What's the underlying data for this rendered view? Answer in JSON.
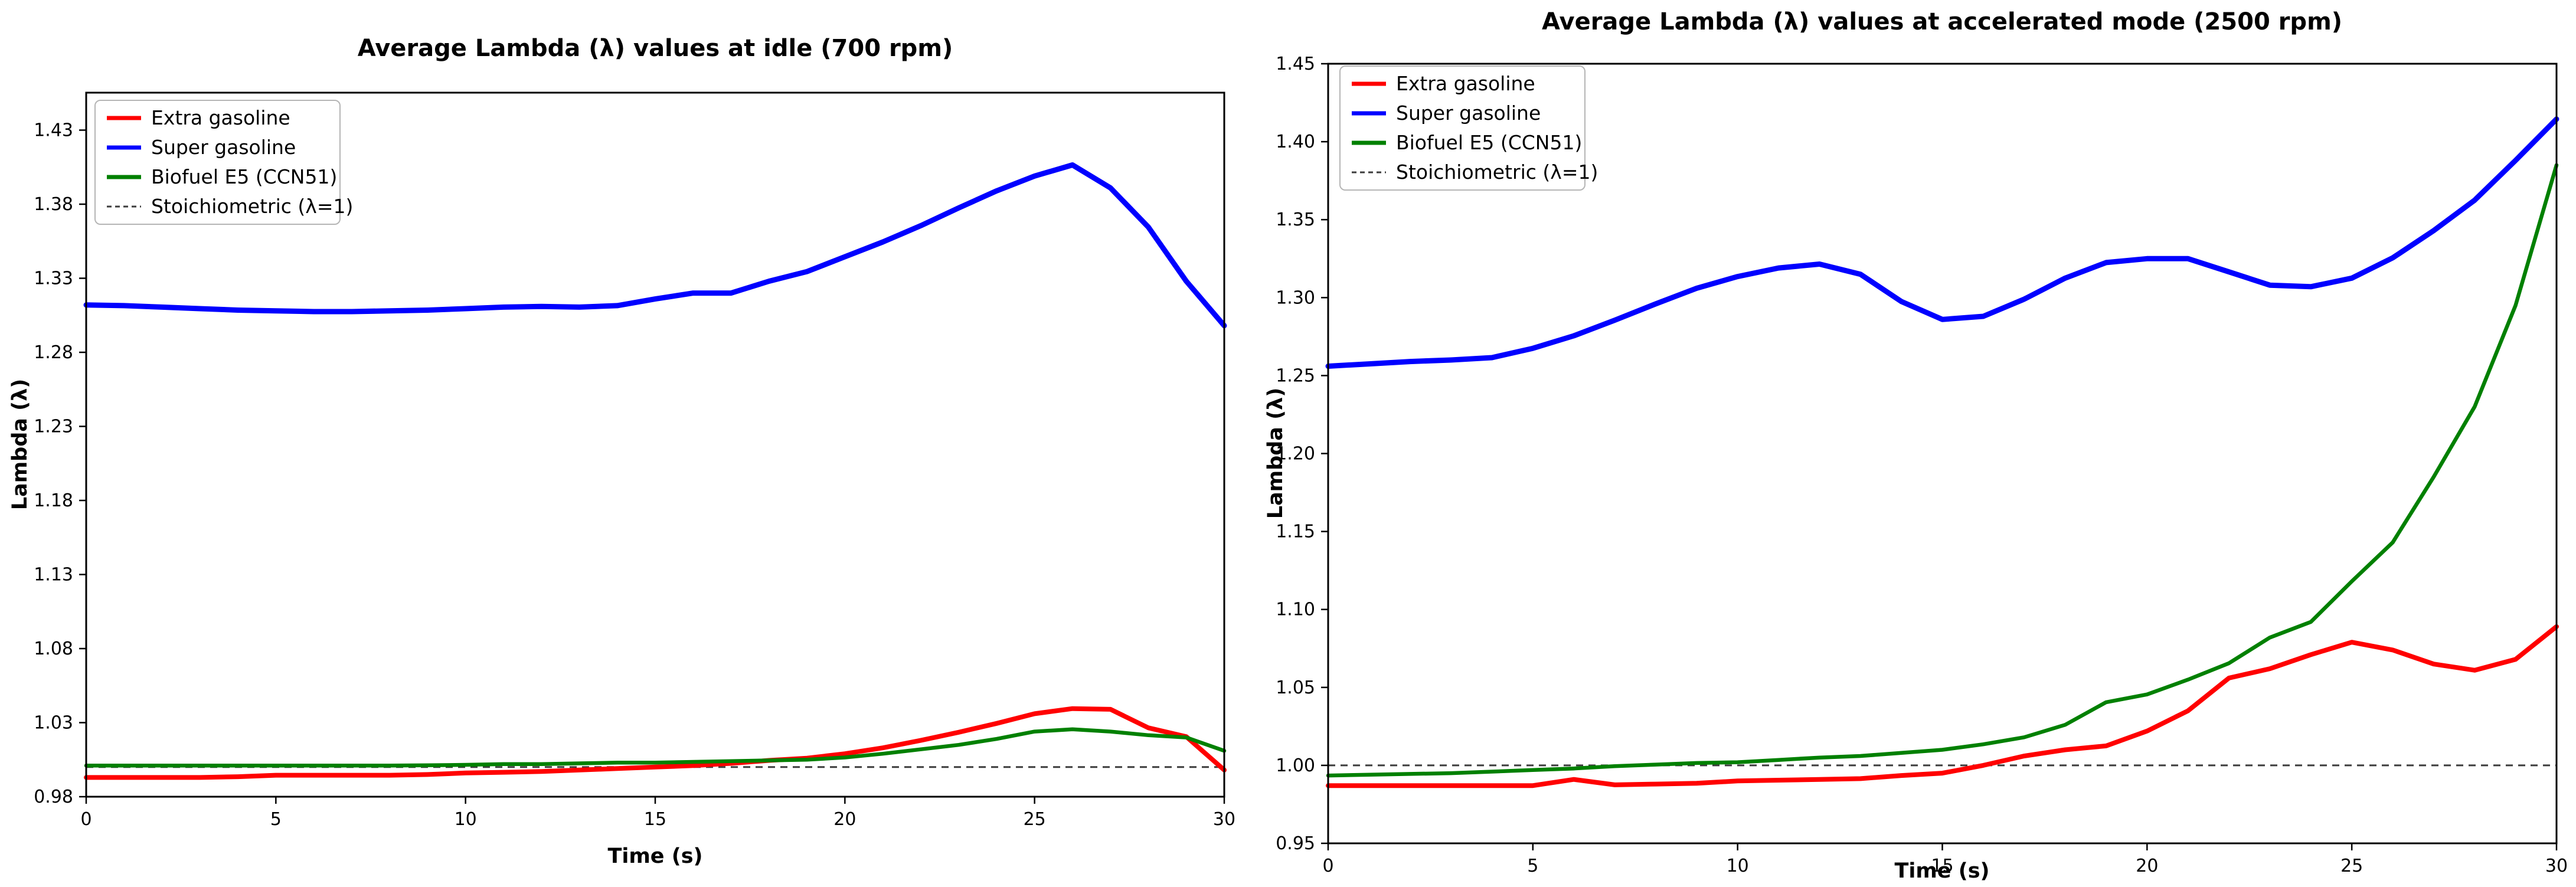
{
  "figure_title": "",
  "stoichiometric_value": 1.0,
  "colors": {
    "extra_gasoline": "#ff0000",
    "super_gasoline": "#0000ff",
    "biofuel_e5": "#008000",
    "stoichiometric": "#3c3c3c",
    "legend_border": "#b5b5b5",
    "axis": "#000000"
  },
  "chart_data": [
    {
      "type": "line",
      "title": "Average Lambda (λ) values at idle (700 rpm)",
      "xlabel": "Time (s)",
      "ylabel": "Lambda (λ)",
      "xlim": [
        0,
        30
      ],
      "ylim": [
        0.98,
        1.4553
      ],
      "xticks": [
        0,
        5,
        10,
        15,
        20,
        25,
        30
      ],
      "yticks": [
        0.98,
        1.03,
        1.08,
        1.13,
        1.18,
        1.23,
        1.28,
        1.33,
        1.38,
        1.43
      ],
      "grid": false,
      "legend_position": "upper left",
      "x": [
        0,
        1,
        2,
        3,
        4,
        5,
        6,
        7,
        8,
        9,
        10,
        11,
        12,
        13,
        14,
        15,
        16,
        17,
        18,
        19,
        20,
        21,
        22,
        23,
        24,
        25,
        26,
        27,
        28,
        29,
        30
      ],
      "series": [
        {
          "name": "Extra gasoline",
          "color": "#ff0000",
          "values": [
            0.993,
            0.993,
            0.993,
            0.993,
            0.9935,
            0.9945,
            0.9945,
            0.9945,
            0.9945,
            0.995,
            0.996,
            0.9965,
            0.997,
            0.998,
            0.999,
            1.0,
            1.001,
            1.0025,
            1.0045,
            1.006,
            1.009,
            1.013,
            1.018,
            1.0235,
            1.0295,
            1.036,
            1.0395,
            1.039,
            1.0265,
            1.0205,
            0.998
          ]
        },
        {
          "name": "Super gasoline",
          "color": "#0000ff",
          "values": [
            1.312,
            1.3115,
            1.3105,
            1.3095,
            1.3085,
            1.308,
            1.3075,
            1.3075,
            1.308,
            1.3085,
            1.3095,
            1.3105,
            1.311,
            1.3105,
            1.3115,
            1.316,
            1.32,
            1.32,
            1.328,
            1.3345,
            1.3445,
            1.3545,
            1.3655,
            1.3775,
            1.389,
            1.399,
            1.4065,
            1.391,
            1.3645,
            1.328,
            1.298
          ]
        },
        {
          "name": "Biofuel E5 (CCN51)",
          "color": "#008000",
          "values": [
            1.001,
            1.001,
            1.001,
            1.001,
            1.001,
            1.001,
            1.001,
            1.001,
            1.001,
            1.0012,
            1.0015,
            1.002,
            1.002,
            1.0025,
            1.003,
            1.003,
            1.0035,
            1.004,
            1.0045,
            1.005,
            1.0065,
            1.009,
            1.012,
            1.015,
            1.019,
            1.024,
            1.0255,
            1.024,
            1.0215,
            1.02,
            1.011
          ]
        }
      ],
      "reference_line": {
        "label": "Stoichiometric (λ=1)",
        "value": 1.0,
        "style": "dashed",
        "color": "#3c3c3c"
      }
    },
    {
      "type": "line",
      "title": "Average Lambda (λ) values at accelerated mode (2500 rpm)",
      "xlabel": "Time (s)",
      "ylabel": "Lambda (λ)",
      "xlim": [
        0,
        30
      ],
      "ylim": [
        0.95,
        1.45
      ],
      "xticks": [
        0,
        5,
        10,
        15,
        20,
        25,
        30
      ],
      "yticks": [
        0.95,
        1.0,
        1.05,
        1.1,
        1.15,
        1.2,
        1.25,
        1.3,
        1.35,
        1.4,
        1.45
      ],
      "grid": false,
      "legend_position": "upper left",
      "x": [
        0,
        1,
        2,
        3,
        4,
        5,
        6,
        7,
        8,
        9,
        10,
        11,
        12,
        13,
        14,
        15,
        16,
        17,
        18,
        19,
        20,
        21,
        22,
        23,
        24,
        25,
        26,
        27,
        28,
        29,
        30
      ],
      "series": [
        {
          "name": "Extra gasoline",
          "color": "#ff0000",
          "values": [
            0.987,
            0.987,
            0.987,
            0.987,
            0.987,
            0.987,
            0.991,
            0.9875,
            0.988,
            0.9885,
            0.99,
            0.9905,
            0.991,
            0.9915,
            0.9935,
            0.995,
            1.0,
            1.006,
            1.01,
            1.0125,
            1.022,
            1.035,
            1.056,
            1.062,
            1.071,
            1.079,
            1.074,
            1.065,
            1.061,
            1.068,
            1.089
          ]
        },
        {
          "name": "Super gasoline",
          "color": "#0000ff",
          "values": [
            1.256,
            1.2575,
            1.259,
            1.26,
            1.2615,
            1.2675,
            1.2755,
            1.2855,
            1.296,
            1.306,
            1.3135,
            1.319,
            1.3215,
            1.315,
            1.2975,
            1.286,
            1.288,
            1.299,
            1.3125,
            1.3225,
            1.325,
            1.325,
            1.3165,
            1.308,
            1.307,
            1.3125,
            1.3255,
            1.343,
            1.3625,
            1.388,
            1.4145
          ]
        },
        {
          "name": "Biofuel E5 (CCN51)",
          "color": "#008000",
          "values": [
            0.9935,
            0.994,
            0.9945,
            0.995,
            0.996,
            0.997,
            0.998,
            0.9995,
            1.0005,
            1.0015,
            1.002,
            1.0035,
            1.005,
            1.006,
            1.008,
            1.01,
            1.0135,
            1.018,
            1.026,
            1.0405,
            1.0455,
            1.055,
            1.0655,
            1.082,
            1.092,
            1.118,
            1.143,
            1.185,
            1.23,
            1.295,
            1.385
          ]
        }
      ],
      "reference_line": {
        "label": "Stoichiometric (λ=1)",
        "value": 1.0,
        "style": "dashed",
        "color": "#3c3c3c"
      }
    }
  ],
  "legend_labels": [
    "Extra gasoline",
    "Super gasoline",
    "Biofuel E5 (CCN51)",
    "Stoichiometric (λ=1)"
  ]
}
